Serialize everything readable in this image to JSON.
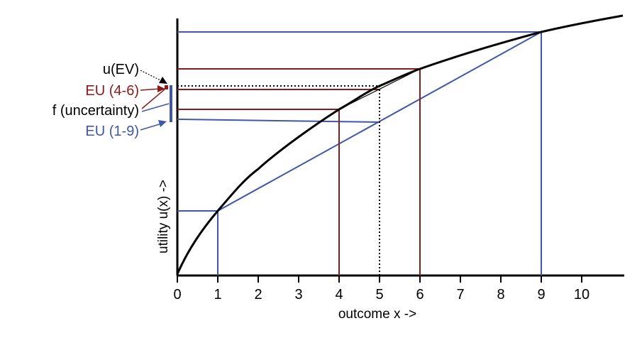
{
  "diagram": {
    "xlabel": "outcome x ->",
    "ylabel": "utility u(x) ->",
    "x_ticks": [
      "0",
      "1",
      "2",
      "3",
      "4",
      "5",
      "6",
      "7",
      "8",
      "9",
      "10"
    ],
    "labels": {
      "u_ev": "u(EV)",
      "eu_4_6": "EU (4-6)",
      "f_uncertainty": "f (uncertainty)",
      "eu_1_9": "EU (1-9)"
    },
    "colors": {
      "curve": "#000000",
      "blue": "#3f57a8",
      "red": "#8b1a1a",
      "dotted": "#000000"
    }
  }
}
